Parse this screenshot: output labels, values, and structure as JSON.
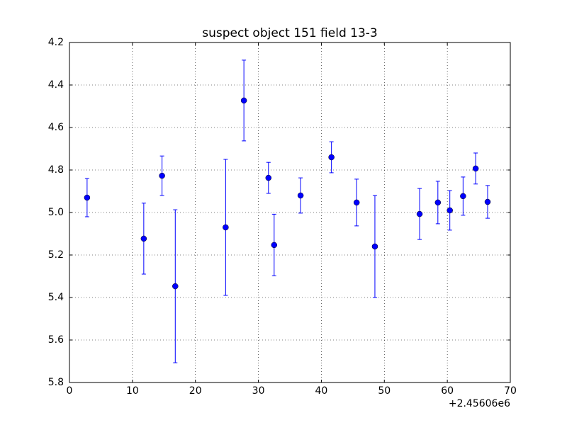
{
  "chart_data": {
    "type": "errorbar",
    "title": "suspect object 151 field 13-3",
    "x_offset_label": "+2.45606e6",
    "x": [
      2.8,
      11.8,
      14.7,
      16.8,
      24.8,
      27.7,
      31.6,
      32.5,
      36.7,
      41.6,
      45.6,
      48.5,
      55.6,
      58.5,
      60.4,
      62.5,
      64.5,
      66.4
    ],
    "series": [
      {
        "color": "#0000ff",
        "values": [
          4.93,
          5.123,
          4.827,
          5.347,
          5.07,
          4.473,
          4.837,
          5.153,
          4.92,
          4.74,
          4.953,
          5.16,
          5.007,
          4.953,
          4.99,
          4.923,
          4.793,
          4.95
        ],
        "yerr": [
          0.09,
          0.167,
          0.093,
          0.36,
          0.32,
          0.19,
          0.073,
          0.145,
          0.083,
          0.073,
          0.11,
          0.24,
          0.12,
          0.1,
          0.093,
          0.09,
          0.073,
          0.077
        ]
      }
    ],
    "xlim": [
      0,
      70
    ],
    "xticks": [
      0,
      10,
      20,
      30,
      40,
      50,
      60,
      70
    ],
    "ylim": [
      4.2,
      5.8
    ],
    "y_inverted": true,
    "yticks": [
      4.2,
      4.4,
      4.6,
      4.8,
      {
        "value": 5,
        "label": "5.0"
      },
      5.2,
      5.4,
      5.6,
      5.8
    ],
    "grid": true
  }
}
